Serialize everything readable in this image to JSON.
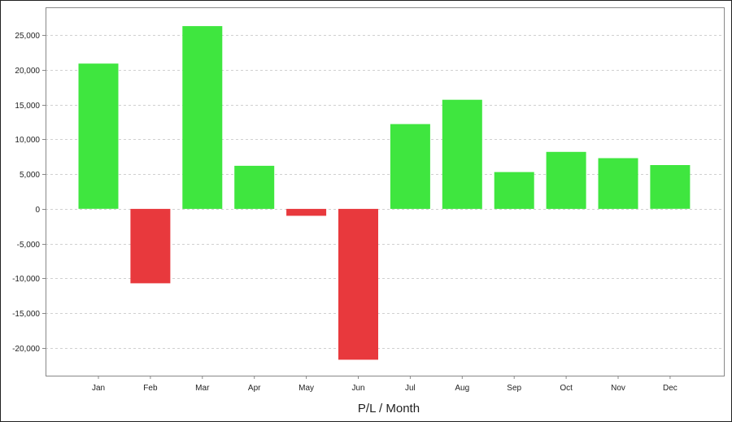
{
  "chart_data": {
    "type": "bar",
    "title": "",
    "xlabel": "P/L / Month",
    "ylabel": "",
    "categories": [
      "Jan",
      "Feb",
      "Mar",
      "Apr",
      "May",
      "Jun",
      "Jul",
      "Aug",
      "Sep",
      "Oct",
      "Nov",
      "Dec"
    ],
    "values": [
      20900,
      -10700,
      26300,
      6200,
      -1000,
      -21700,
      12200,
      15700,
      5300,
      8200,
      7300,
      6300
    ],
    "ylim": [
      -24000,
      29000
    ],
    "yticks": [
      -20000,
      -15000,
      -10000,
      -5000,
      0,
      5000,
      10000,
      15000,
      20000,
      25000
    ],
    "ytick_labels": [
      "-20,000",
      "-15,000",
      "-10,000",
      "-5,000",
      "0",
      "5,000",
      "10,000",
      "15,000",
      "20,000",
      "25,000"
    ],
    "grid": true,
    "legend": "none",
    "colors": {
      "positive": "#3fe63f",
      "negative": "#e8393d",
      "grid": "#d0d0d0",
      "axis": "#888888"
    }
  }
}
